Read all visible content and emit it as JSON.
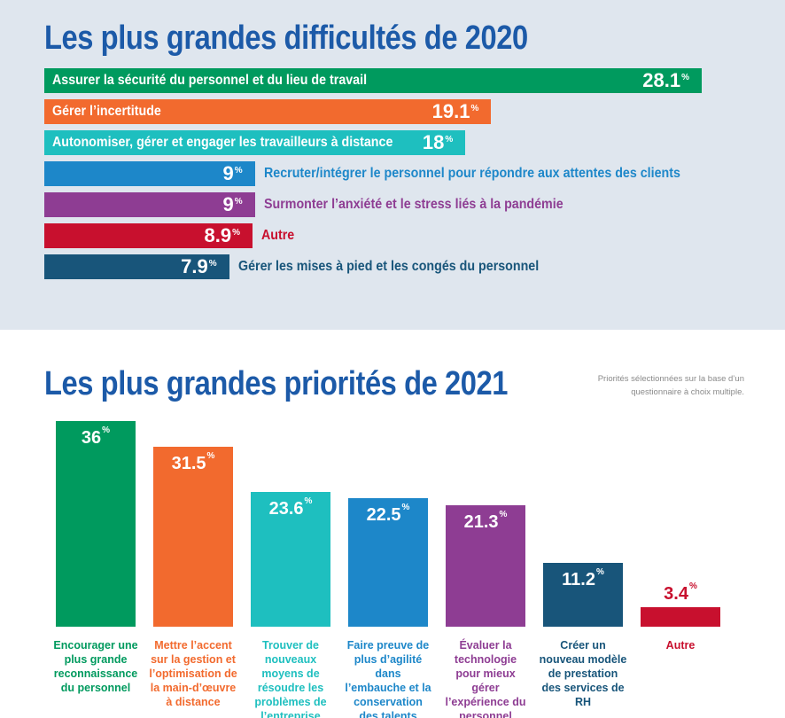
{
  "chart_data": [
    {
      "type": "bar",
      "orientation": "horizontal",
      "title": "Les plus grandes difficultés de 2020",
      "unit": "%",
      "xlim": [
        0,
        28.1
      ],
      "bars": [
        {
          "label": "Assurer la sécurité du personnel et du lieu de travail",
          "value": 28.1,
          "display": "28.1",
          "color": "#009a5e",
          "label_inside": true
        },
        {
          "label": "Gérer l’incertitude",
          "value": 19.1,
          "display": "19.1",
          "color": "#f26a2e",
          "label_inside": true
        },
        {
          "label": "Autonomiser, gérer et engager les travailleurs à distance",
          "value": 18,
          "display": "18",
          "color": "#1ebfbf",
          "label_inside": true
        },
        {
          "label": "Recruter/intégrer le personnel pour répondre aux attentes des clients",
          "value": 9,
          "display": "9",
          "color": "#1d87c9",
          "label_inside": false
        },
        {
          "label": "Surmonter l’anxiété et le stress liés à la pandémie",
          "value": 9,
          "display": "9",
          "color": "#8e3d93",
          "label_inside": false
        },
        {
          "label": "Autre",
          "value": 8.9,
          "display": "8.9",
          "color": "#c8102e",
          "label_inside": false
        },
        {
          "label": "Gérer les mises à pied et les congés du personnel",
          "value": 7.9,
          "display": "7.9",
          "color": "#18557a",
          "label_inside": false
        }
      ]
    },
    {
      "type": "bar",
      "orientation": "vertical",
      "title": "Les plus grandes priorités de 2021",
      "note": "Priorités sélectionnées sur la base d’un questionnaire à choix multiple.",
      "unit": "%",
      "ylim": [
        0,
        36
      ],
      "bars": [
        {
          "label": "Encourager une plus grande reconnaissance du personnel",
          "value": 36,
          "display": "36",
          "color": "#009a5e"
        },
        {
          "label": "Mettre l’accent sur la gestion et l’optimisation de la main-d’œuvre à distance",
          "value": 31.5,
          "display": "31.5",
          "color": "#f26a2e"
        },
        {
          "label": "Trouver de nouveaux moyens de résoudre les problèmes de l’entreprise",
          "value": 23.6,
          "display": "23.6",
          "color": "#1ebfbf"
        },
        {
          "label": "Faire preuve de plus d’agilité dans l’embauche et la conservation des talents",
          "value": 22.5,
          "display": "22.5",
          "color": "#1d87c9"
        },
        {
          "label": "Évaluer la technologie pour mieux gérer l’expérience du personnel",
          "value": 21.3,
          "display": "21.3",
          "color": "#8e3d93"
        },
        {
          "label": "Créer un nouveau modèle de prestation des services de RH",
          "value": 11.2,
          "display": "11.2",
          "color": "#18557a"
        },
        {
          "label": "Autre",
          "value": 3.4,
          "display": "3.4",
          "color": "#c8102e"
        }
      ]
    }
  ]
}
